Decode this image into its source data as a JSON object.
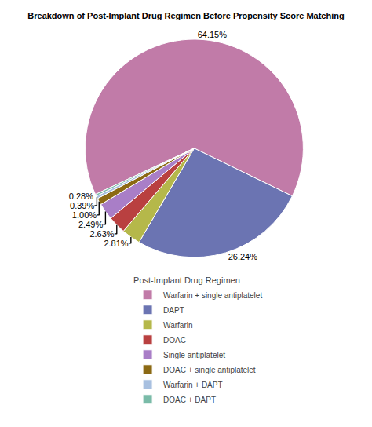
{
  "chart_data": {
    "type": "pie",
    "title": "Breakdown of Post-Implant Drug Regimen Before Propensity Score Matching",
    "categories": [
      "Warfarin + single antiplatelet",
      "DAPT",
      "Warfarin",
      "DOAC",
      "Single antiplatelet",
      "DOAC + single antiplatelet",
      "Warfarin + DAPT",
      "DOAC + DAPT"
    ],
    "values": [
      64.15,
      26.24,
      2.81,
      2.63,
      2.49,
      1.0,
      0.39,
      0.28
    ],
    "value_labels": [
      "64.15%",
      "26.24%",
      "2.81%",
      "2.63%",
      "2.49%",
      "1.00%",
      "0.39%",
      "0.28%"
    ],
    "colors": [
      "#C17BA8",
      "#6B74B2",
      "#B5B84A",
      "#B94040",
      "#A97EC7",
      "#8B6914",
      "#A8C0E0",
      "#7ABBA8"
    ],
    "data_labels": true,
    "legend": "bottom",
    "legend_title": "Post-Implant Drug Regimen"
  }
}
